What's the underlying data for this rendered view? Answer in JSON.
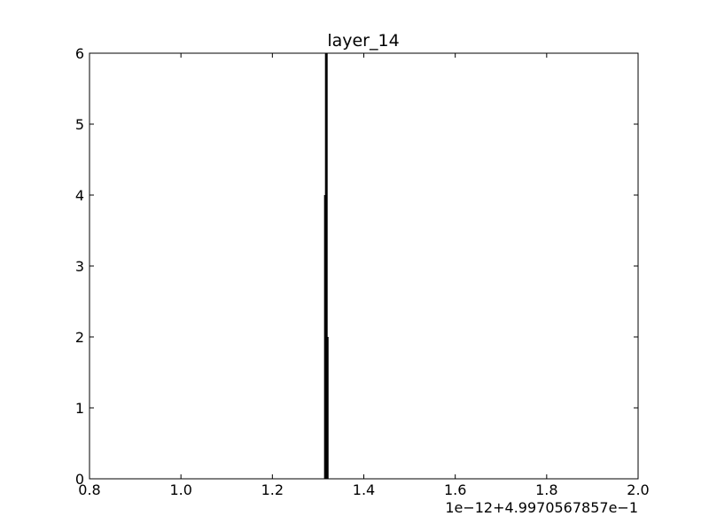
{
  "chart_data": {
    "type": "bar",
    "title": "layer_14",
    "xlabel": "",
    "ylabel": "",
    "xlim": [
      0.8,
      2.0
    ],
    "ylim": [
      0,
      6
    ],
    "x_ticks": [
      "0.8",
      "1.0",
      "1.2",
      "1.4",
      "1.6",
      "1.8",
      "2.0"
    ],
    "y_ticks": [
      "0",
      "1",
      "2",
      "3",
      "4",
      "5",
      "6"
    ],
    "x_offset_label": "1e−12+4.9970567857e−1",
    "grid": false,
    "bar_color": "#000000",
    "bars": [
      {
        "x": 1.316,
        "value": 4
      },
      {
        "x": 1.318,
        "value": 6
      },
      {
        "x": 1.32,
        "value": 2
      }
    ]
  }
}
